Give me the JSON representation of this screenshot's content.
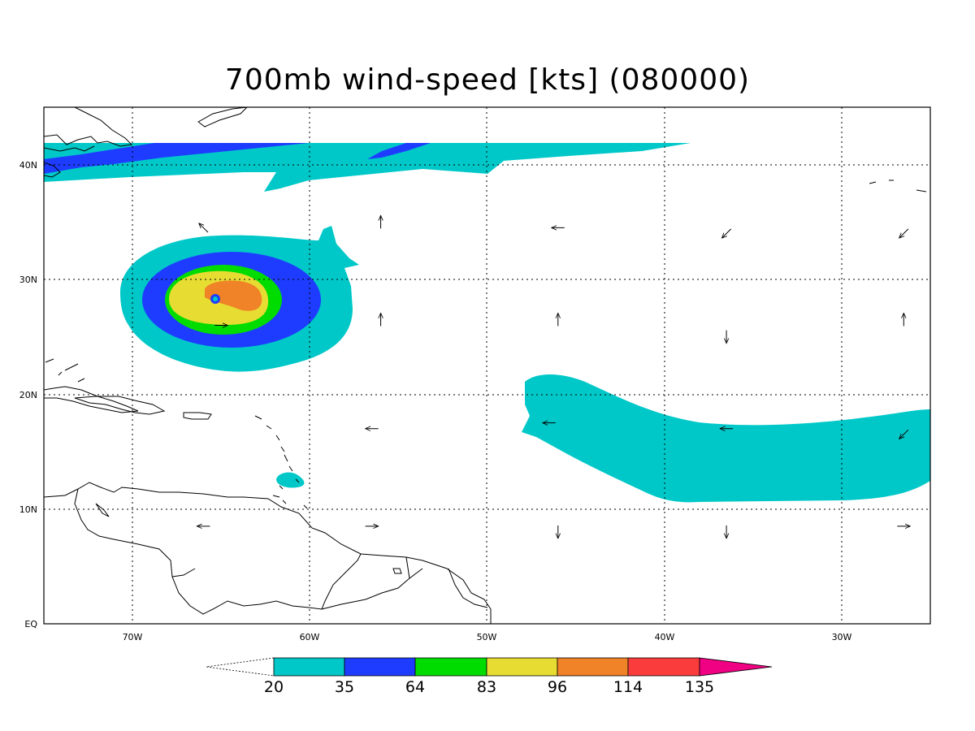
{
  "title": "700mb wind-speed [kts] (080000)",
  "axes": {
    "lat_ticks": [
      {
        "label": "EQ",
        "lat": 0
      },
      {
        "label": "10N",
        "lat": 10
      },
      {
        "label": "20N",
        "lat": 20
      },
      {
        "label": "30N",
        "lat": 30
      },
      {
        "label": "40N",
        "lat": 40
      }
    ],
    "lon_ticks": [
      {
        "label": "70W",
        "lon": -70
      },
      {
        "label": "60W",
        "lon": -60
      },
      {
        "label": "50W",
        "lon": -50
      },
      {
        "label": "40W",
        "lon": -40
      },
      {
        "label": "30W",
        "lon": -30
      }
    ],
    "lon_range": [
      -74.5,
      -24.5
    ],
    "lat_range": [
      0,
      45
    ],
    "grid": "dotted"
  },
  "colorbar": {
    "levels": [
      {
        "label": "20",
        "color": "#00c8c8"
      },
      {
        "label": "35",
        "color": "#1e3cff"
      },
      {
        "label": "64",
        "color": "#00dc00"
      },
      {
        "label": "83",
        "color": "#e6dc32"
      },
      {
        "label": "96",
        "color": "#f08228"
      },
      {
        "label": "114",
        "color": "#fa3c3c"
      },
      {
        "label": "135",
        "color": "#f00082"
      }
    ],
    "below_color": "#ffffff"
  },
  "wind_vectors": [
    {
      "lon": -65.5,
      "lat": 34.5,
      "dir": "NW"
    },
    {
      "lon": -55.5,
      "lat": 35.0,
      "dir": "N"
    },
    {
      "lon": -45.5,
      "lat": 34.5,
      "dir": "W"
    },
    {
      "lon": -36.0,
      "lat": 34.0,
      "dir": "SW"
    },
    {
      "lon": -26.0,
      "lat": 34.0,
      "dir": "SW"
    },
    {
      "lon": -55.5,
      "lat": 26.5,
      "dir": "N"
    },
    {
      "lon": -45.5,
      "lat": 26.5,
      "dir": "N"
    },
    {
      "lon": -36.0,
      "lat": 25.0,
      "dir": "S"
    },
    {
      "lon": -26.0,
      "lat": 26.5,
      "dir": "N"
    },
    {
      "lon": -64.5,
      "lat": 26.0,
      "dir": "E"
    },
    {
      "lon": -56.0,
      "lat": 17.0,
      "dir": "W"
    },
    {
      "lon": -46.0,
      "lat": 17.5,
      "dir": "W"
    },
    {
      "lon": -36.0,
      "lat": 17.0,
      "dir": "W"
    },
    {
      "lon": -26.0,
      "lat": 16.5,
      "dir": "SW"
    },
    {
      "lon": -65.5,
      "lat": 8.5,
      "dir": "W"
    },
    {
      "lon": -56.0,
      "lat": 8.5,
      "dir": "E"
    },
    {
      "lon": -45.5,
      "lat": 8.0,
      "dir": "S"
    },
    {
      "lon": -36.0,
      "lat": 8.0,
      "dir": "S"
    },
    {
      "lon": -26.0,
      "lat": 8.5,
      "dir": "E"
    }
  ]
}
